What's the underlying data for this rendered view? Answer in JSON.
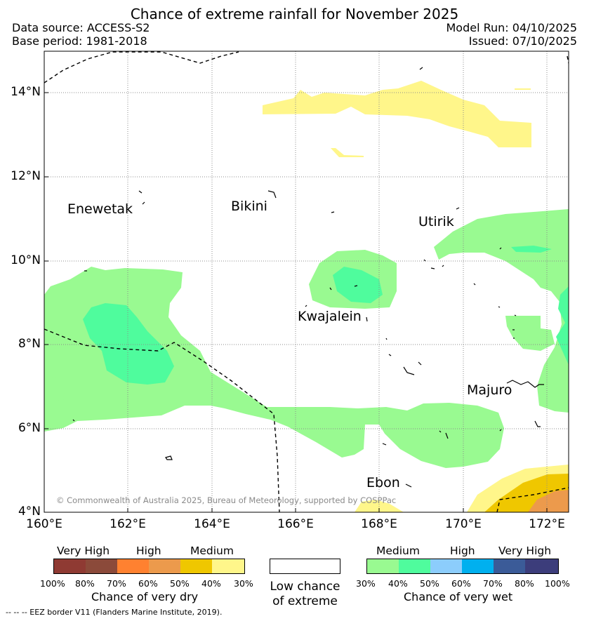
{
  "title": "Chance of extreme rainfall for November 2025",
  "header": {
    "data_source": "Data source: ACCESS-S2",
    "base_period": "Base period: 1981-2018",
    "model_run": "Model Run: 04/10/2025",
    "issued": "Issued: 07/10/2025"
  },
  "map": {
    "lat_labels": [
      "14°N",
      "12°N",
      "10°N",
      "8°N",
      "6°N",
      "4°N"
    ],
    "lon_labels": [
      "160°E",
      "162°E",
      "164°E",
      "166°E",
      "168°E",
      "170°E",
      "172°E"
    ],
    "places": {
      "enewetak": "Enewetak",
      "bikini": "Bikini",
      "utirik": "Utirik",
      "kwajalein": "Kwajalein",
      "majuro": "Majuro",
      "ebon": "Ebon"
    },
    "copyright": "© Commonwealth of Australia 2025, Bureau of Meteorology, supported by COSPPac"
  },
  "legend": {
    "dry": {
      "groups": [
        "Very High",
        "High",
        "Medium"
      ],
      "ticks": [
        "100%",
        "80%",
        "70%",
        "60%",
        "50%",
        "40%",
        "30%"
      ],
      "colors": [
        "#8f3a33",
        "#8b4a3a",
        "#ff8130",
        "#ec9a4c",
        "#efc700",
        "#fff68a"
      ],
      "title": "Chance of very dry"
    },
    "low": {
      "line1": "Low chance",
      "line2": "of extreme",
      "color": "#ffffff"
    },
    "wet": {
      "groups": [
        "Medium",
        "High",
        "Very High"
      ],
      "ticks": [
        "30%",
        "40%",
        "50%",
        "60%",
        "70%",
        "80%",
        "100%"
      ],
      "colors": [
        "#99fa91",
        "#4ffc9d",
        "#8ccdfc",
        "#00b0ef",
        "#3b5b98",
        "#3c3d7b"
      ],
      "title": "Chance of very wet"
    },
    "footnote": "--  --  -- EEZ border V11 (Flanders Marine Institute, 2019)."
  }
}
